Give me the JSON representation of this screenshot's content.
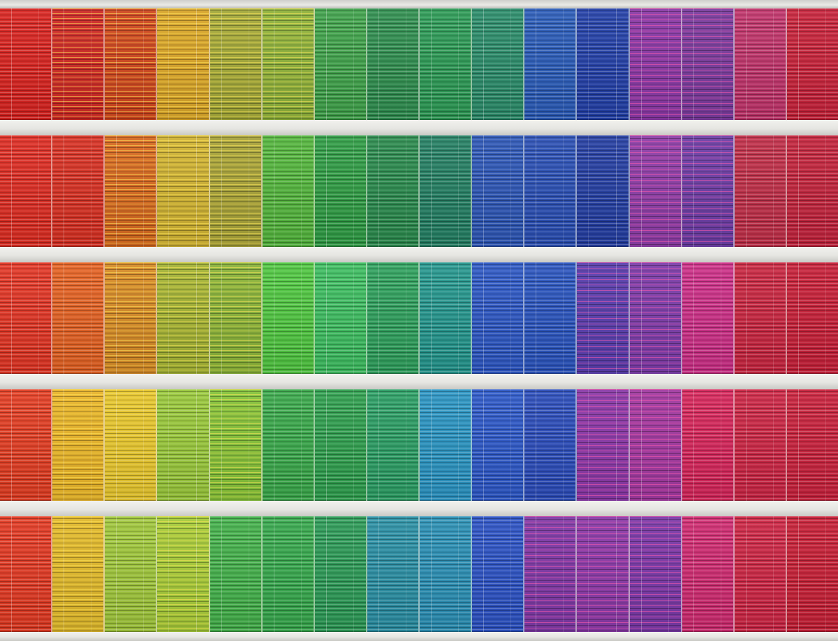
{
  "scene": {
    "subject": "building-facade-rainbow-window-blinds",
    "floors": [
      {
        "colors": [
          "#d9231f",
          "#cf2a26",
          "#d0471f",
          "#d9a52a",
          "#a4a93a",
          "#8fb23c",
          "#3fa24a",
          "#2f8e4f",
          "#2c9a55",
          "#2b8c6a",
          "#2a5bb8",
          "#2340a8",
          "#8a3aa6",
          "#7a3d9e",
          "#c0336a",
          "#c8223a"
        ],
        "stripes": [
          false,
          true,
          true,
          true,
          true,
          true,
          false,
          false,
          false,
          false,
          false,
          false,
          "pink",
          "pink",
          false,
          false
        ]
      },
      {
        "colors": [
          "#de2c22",
          "#d83022",
          "#d76a21",
          "#cfb234",
          "#a8a33a",
          "#53b53c",
          "#2f9c44",
          "#2a8a4d",
          "#247f63",
          "#2d56b6",
          "#2a4fb4",
          "#243ea2",
          "#8e3fa8",
          "#6d3fa6",
          "#c02e48",
          "#c3233c"
        ],
        "stripes": [
          false,
          false,
          true,
          true,
          true,
          false,
          false,
          false,
          false,
          false,
          false,
          false,
          "pink",
          "pink",
          false,
          false
        ]
      },
      {
        "colors": [
          "#e23524",
          "#e46122",
          "#d68b28",
          "#a4b336",
          "#8ab33a",
          "#4fc640",
          "#3dbd60",
          "#2ea05c",
          "#24968d",
          "#2d57c4",
          "#2a54be",
          "#5a3fae",
          "#7d3eaa",
          "#cc2e86",
          "#c92540",
          "#c71f38"
        ],
        "stripes": [
          false,
          false,
          true,
          true,
          true,
          false,
          false,
          false,
          false,
          false,
          false,
          "pink",
          "pink",
          false,
          false,
          false
        ]
      },
      {
        "colors": [
          "#e33d22",
          "#e8b42a",
          "#e8c72c",
          "#99c83a",
          "#86c23a",
          "#39a84a",
          "#2f9f4e",
          "#2b9e64",
          "#2a94c2",
          "#2d58c8",
          "#2b4cba",
          "#8a3aa8",
          "#a13aa0",
          "#d6255a",
          "#cc2544",
          "#c9213c"
        ],
        "stripes": [
          false,
          true,
          false,
          false,
          true,
          false,
          false,
          false,
          false,
          false,
          false,
          "pink",
          "pink",
          false,
          false,
          false
        ]
      },
      {
        "colors": [
          "#e23922",
          "#e0b82c",
          "#9fc63a",
          "#a7cb3a",
          "#43b04a",
          "#36a84c",
          "#2c9a56",
          "#2a8fa4",
          "#2a8fb4",
          "#2c52c4",
          "#7e3aa6",
          "#8a3ba8",
          "#7a3aa8",
          "#cf2a70",
          "#cd2544",
          "#c71f36"
        ],
        "stripes": [
          false,
          true,
          false,
          true,
          false,
          false,
          false,
          false,
          false,
          false,
          "pink",
          "pink",
          "pink",
          false,
          false,
          false
        ]
      }
    ]
  }
}
